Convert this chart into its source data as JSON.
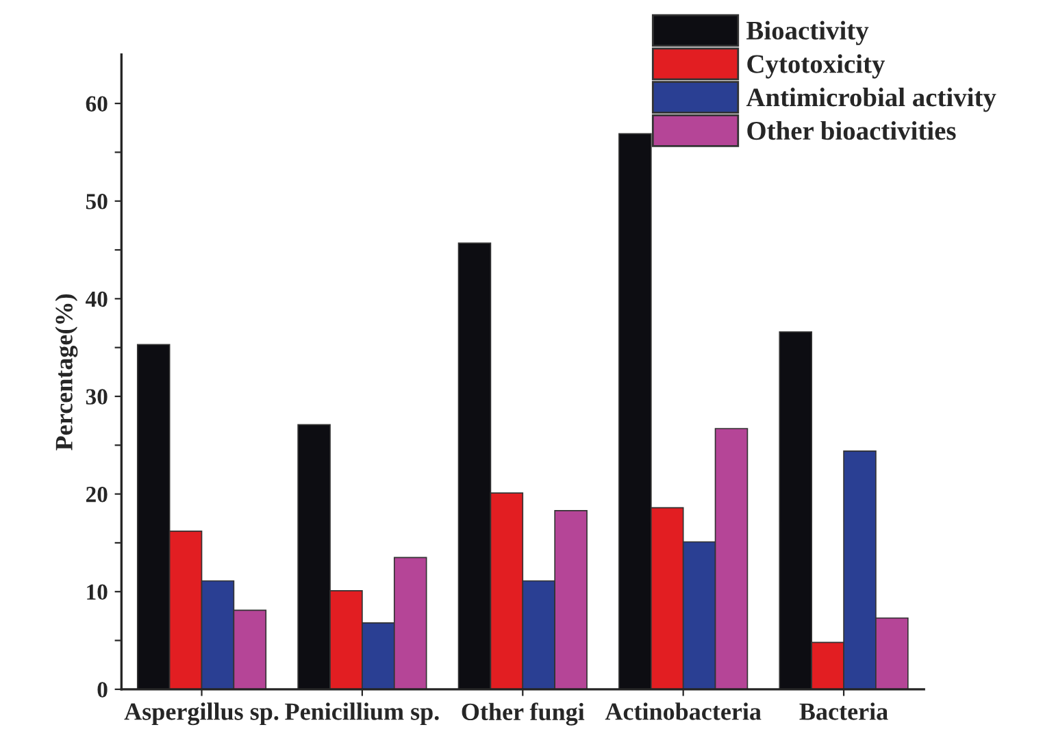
{
  "chart_data": {
    "type": "bar",
    "ylabel": "Percentage(%)",
    "categories": [
      "Aspergillus sp.",
      "Penicillium sp.",
      "Other fungi",
      "Actinobacteria",
      "Bacteria"
    ],
    "series": [
      {
        "name": "Bioactivity",
        "color": "#0d0d12",
        "values": [
          35.3,
          27.1,
          45.7,
          56.9,
          36.6
        ]
      },
      {
        "name": "Cytotoxicity",
        "color": "#e21e22",
        "values": [
          16.2,
          10.1,
          20.1,
          18.6,
          4.8
        ]
      },
      {
        "name": "Antimicrobial activity",
        "color": "#2a3f93",
        "values": [
          11.1,
          6.8,
          11.1,
          15.1,
          24.4
        ]
      },
      {
        "name": "Other bioactivities",
        "color": "#b54597",
        "values": [
          8.1,
          13.5,
          18.3,
          26.7,
          7.3
        ]
      }
    ],
    "ylim": [
      0,
      65
    ],
    "yticks": [
      0,
      {
        "value": 5,
        "label": null
      },
      10,
      {
        "value": 15,
        "label": null
      },
      20,
      {
        "value": 25,
        "label": null
      },
      30,
      {
        "value": 35,
        "label": null
      },
      40,
      {
        "value": 45,
        "label": null
      },
      50,
      {
        "value": 55,
        "label": null
      },
      60
    ],
    "grid": false,
    "legend": "top right"
  }
}
